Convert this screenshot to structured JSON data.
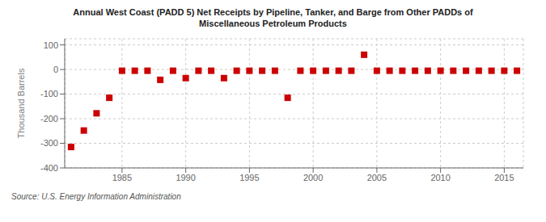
{
  "chart_data": {
    "type": "scatter",
    "title": "Annual West Coast (PADD 5) Net Receipts by Pipeline, Tanker, and Barge from Other PADDs of\nMiscellaneous Petroleum Products",
    "ylabel": "Thousand Barrels",
    "source": "Source: U.S. Energy Information Administration",
    "x": [
      1981,
      1982,
      1983,
      1984,
      1985,
      1986,
      1987,
      1988,
      1989,
      1990,
      1991,
      1992,
      1993,
      1994,
      1995,
      1996,
      1997,
      1998,
      1999,
      2000,
      2001,
      2002,
      2003,
      2004,
      2005,
      2006,
      2007,
      2008,
      2009,
      2010,
      2011,
      2012,
      2013,
      2014,
      2015,
      2016
    ],
    "values": [
      -315,
      -248,
      -178,
      -115,
      -5,
      -5,
      -5,
      -42,
      -5,
      -35,
      -5,
      -5,
      -35,
      -5,
      -5,
      -5,
      -5,
      -115,
      -5,
      -5,
      -5,
      -5,
      -5,
      60,
      -5,
      -5,
      -5,
      -5,
      -5,
      -5,
      -5,
      -5,
      -5,
      -5,
      -5,
      -5
    ],
    "color": "#cc0000",
    "marker": "square",
    "xlim": [
      1980.5,
      2016.5
    ],
    "xticks": [
      1985,
      1990,
      1995,
      2000,
      2005,
      2010,
      2015
    ],
    "ylim": [
      -400,
      125
    ],
    "yticks": [
      -400,
      -300,
      -200,
      -100,
      0,
      100
    ],
    "grid": true
  }
}
